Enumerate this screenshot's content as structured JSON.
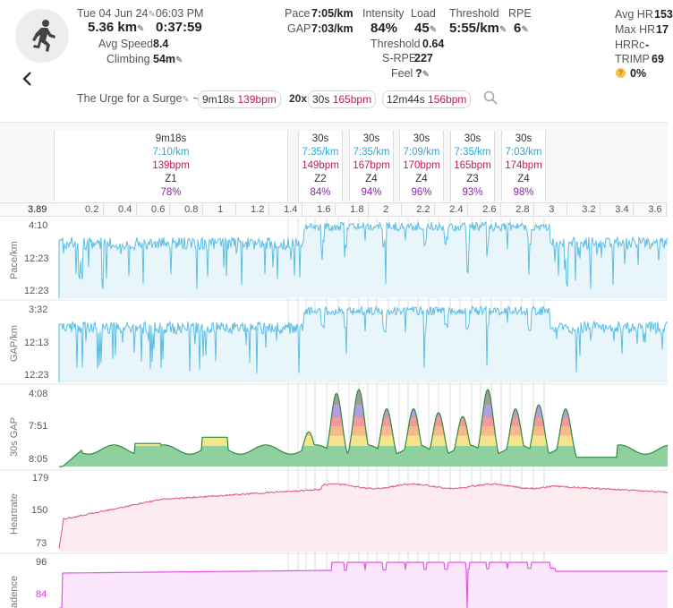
{
  "header": {
    "date": "Tue 04 Jun 24",
    "time": "06:03 PM",
    "distance": "5.36 km",
    "duration": "0:37:59",
    "avg_speed_label": "Avg Speed",
    "avg_speed": "8.4",
    "climbing_label": "Climbing",
    "climbing": "54m",
    "pace_label": "Pace",
    "pace": "7:05/km",
    "gap_label": "GAP",
    "gap": "7:03/km",
    "intensity_label": "Intensity",
    "intensity": "84%",
    "load_label": "Load",
    "load": "45",
    "threshold_label": "Threshold",
    "threshold": "5:55/km",
    "rpe_label": "RPE",
    "rpe": "6",
    "threshold2_label": "Threshold",
    "threshold2": "0.64",
    "srpe_label": "S-RPE",
    "srpe": "227",
    "feel_label": "Feel",
    "feel": "?",
    "avg_hr_label": "Avg HR",
    "avg_hr": "153",
    "max_hr_label": "Max HR",
    "max_hr": "17",
    "hrrc_label": "HRRc",
    "hrrc": "-",
    "trimp_label": "TRIMP",
    "trimp": "69",
    "zero_pct": "0%"
  },
  "workout": {
    "name": "The Urge for a Surge",
    "tilde": "~",
    "chip1_time": "9m18s",
    "chip1_bpm": "139bpm",
    "reps": "20x",
    "chip2_time": "30s",
    "chip2_bpm": "165bpm",
    "chip3_time": "12m44s",
    "chip3_bpm": "156bpm"
  },
  "intervals": [
    {
      "time": "9m18s",
      "pace": "7:10/km",
      "bpm": "139bpm",
      "zone": "Z1",
      "pct": "78%"
    },
    {
      "time": "30s",
      "pace": "7:35/km",
      "bpm": "149bpm",
      "zone": "Z2",
      "pct": "84%"
    },
    {
      "time": "30s",
      "pace": "7:35/km",
      "bpm": "167bpm",
      "zone": "Z4",
      "pct": "94%"
    },
    {
      "time": "30s",
      "pace": "7:09/km",
      "bpm": "170bpm",
      "zone": "Z4",
      "pct": "96%"
    },
    {
      "time": "30s",
      "pace": "7:35/km",
      "bpm": "165bpm",
      "zone": "Z3",
      "pct": "93%"
    },
    {
      "time": "30s",
      "pace": "7:03/km",
      "bpm": "174bpm",
      "zone": "Z4",
      "pct": "98%"
    }
  ],
  "xaxis": {
    "start": "3.89",
    "ticks": [
      "0.2",
      "0.4",
      "0.6",
      "0.8",
      "1",
      "1.2",
      "1.4",
      "1.6",
      "1.8",
      "2",
      "2.2",
      "2.4",
      "2.6",
      "2.8",
      "3",
      "3.2",
      "3.4",
      "3.6"
    ]
  },
  "charts": {
    "pace": {
      "title": "Pace/km",
      "top": "4:10",
      "mid": "12:23",
      "bottom": "12:23"
    },
    "gap": {
      "title": "GAP/km",
      "top": "3:32",
      "mid": "12:13",
      "bottom": "12:23"
    },
    "gap30": {
      "title": "30s GAP",
      "top": "4:08",
      "mid": "7:51",
      "bottom": "8:05"
    },
    "hr": {
      "title": "Heartrate",
      "top": "179",
      "mid": "150",
      "bottom": "73"
    },
    "cad": {
      "title": "adence",
      "top": "96",
      "mid": "84"
    }
  },
  "colors": {
    "pace": "#5bbde4",
    "pace_fill": "#e8f5fb",
    "hr": "#e0567a",
    "hr_fill": "#fdecef",
    "cad": "#e652e6",
    "cad_fill": "#fbe6fb",
    "z_green": "#8fd19e",
    "z_yellow": "#f7e38a",
    "z_orange": "#f6b98a",
    "z_red": "#f29a9a",
    "z_purple": "#b59be0",
    "z_gray": "#9c9c9c"
  },
  "icons": {
    "activity": "runner-icon",
    "back": "back-chevron-icon",
    "search": "search-icon",
    "edit": "pencil-icon",
    "feel": "face-icon"
  }
}
